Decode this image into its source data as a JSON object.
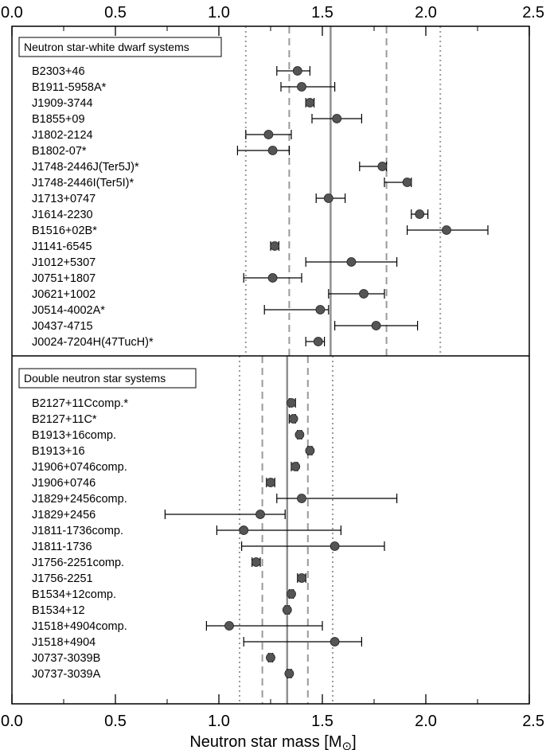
{
  "chart_data": {
    "type": "scatter",
    "xlabel_text": "Neutron star mass [M",
    "xlabel_symbol": "⊙",
    "xlabel_suffix": "]",
    "xlim": [
      0,
      2.5
    ],
    "xticks": [
      0.0,
      0.5,
      1.0,
      1.5,
      2.0,
      2.5
    ],
    "xtick_labels": [
      "0.0",
      "0.5",
      "1.0",
      "1.5",
      "2.0",
      "2.5"
    ],
    "colors": {
      "marker": "#555555",
      "mean": "#909090",
      "sigma": "#9a9a9a",
      "frame": "#000000"
    },
    "panels": [
      {
        "title": "Neutron star-white dwarf systems",
        "mean": 1.54,
        "sigma1": [
          1.34,
          1.81
        ],
        "sigma2": [
          1.13,
          2.07
        ],
        "points": [
          {
            "name": "B2303+46",
            "value": 1.38,
            "lo": 1.28,
            "hi": 1.44
          },
          {
            "name": "B1911-5958A*",
            "value": 1.4,
            "lo": 1.3,
            "hi": 1.56
          },
          {
            "name": "J1909-3744",
            "value": 1.44,
            "lo": 1.42,
            "hi": 1.46
          },
          {
            "name": "B1855+09",
            "value": 1.57,
            "lo": 1.45,
            "hi": 1.69
          },
          {
            "name": "J1802-2124",
            "value": 1.24,
            "lo": 1.13,
            "hi": 1.35
          },
          {
            "name": "B1802-07*",
            "value": 1.26,
            "lo": 1.09,
            "hi": 1.34
          },
          {
            "name": "J1748-2446J(Ter5J)*",
            "value": 1.79,
            "lo": 1.68,
            "hi": 1.81
          },
          {
            "name": "J1748-2446I(Ter5I)*",
            "value": 1.91,
            "lo": 1.8,
            "hi": 1.93
          },
          {
            "name": "J1713+0747",
            "value": 1.53,
            "lo": 1.47,
            "hi": 1.61
          },
          {
            "name": "J1614-2230",
            "value": 1.97,
            "lo": 1.93,
            "hi": 2.01
          },
          {
            "name": "B1516+02B*",
            "value": 2.1,
            "lo": 1.91,
            "hi": 2.3
          },
          {
            "name": "J1141-6545",
            "value": 1.27,
            "lo": 1.25,
            "hi": 1.29
          },
          {
            "name": "J1012+5307",
            "value": 1.64,
            "lo": 1.42,
            "hi": 1.86
          },
          {
            "name": "J0751+1807",
            "value": 1.26,
            "lo": 1.12,
            "hi": 1.4
          },
          {
            "name": "J0621+1002",
            "value": 1.7,
            "lo": 1.53,
            "hi": 1.8
          },
          {
            "name": "J0514-4002A*",
            "value": 1.49,
            "lo": 1.22,
            "hi": 1.53
          },
          {
            "name": "J0437-4715",
            "value": 1.76,
            "lo": 1.56,
            "hi": 1.96
          },
          {
            "name": "J0024-7204H(47TucH)*",
            "value": 1.48,
            "lo": 1.42,
            "hi": 1.51
          }
        ]
      },
      {
        "title": "Double neutron star systems",
        "mean": 1.33,
        "sigma1": [
          1.21,
          1.43
        ],
        "sigma2": [
          1.1,
          1.55
        ],
        "points": [
          {
            "name": "B2127+11Ccomp.*",
            "value": 1.35,
            "lo": 1.34,
            "hi": 1.37
          },
          {
            "name": "B2127+11C*",
            "value": 1.36,
            "lo": 1.34,
            "hi": 1.37
          },
          {
            "name": "B1913+16comp.",
            "value": 1.39,
            "lo": 1.38,
            "hi": 1.4
          },
          {
            "name": "B1913+16",
            "value": 1.44,
            "lo": 1.43,
            "hi": 1.45
          },
          {
            "name": "J1906+0746comp.",
            "value": 1.37,
            "lo": 1.35,
            "hi": 1.38
          },
          {
            "name": "J1906+0746",
            "value": 1.25,
            "lo": 1.23,
            "hi": 1.27
          },
          {
            "name": "J1829+2456comp.",
            "value": 1.4,
            "lo": 1.28,
            "hi": 1.86
          },
          {
            "name": "J1829+2456",
            "value": 1.2,
            "lo": 0.74,
            "hi": 1.32
          },
          {
            "name": "J1811-1736comp.",
            "value": 1.12,
            "lo": 0.99,
            "hi": 1.59
          },
          {
            "name": "J1811-1736",
            "value": 1.56,
            "lo": 1.11,
            "hi": 1.8
          },
          {
            "name": "J1756-2251comp.",
            "value": 1.18,
            "lo": 1.16,
            "hi": 1.2
          },
          {
            "name": "J1756-2251",
            "value": 1.4,
            "lo": 1.38,
            "hi": 1.42
          },
          {
            "name": "B1534+12comp.",
            "value": 1.35,
            "lo": 1.34,
            "hi": 1.36
          },
          {
            "name": "B1534+12",
            "value": 1.33,
            "lo": 1.32,
            "hi": 1.34
          },
          {
            "name": "J1518+4904comp.",
            "value": 1.05,
            "lo": 0.94,
            "hi": 1.5
          },
          {
            "name": "J1518+4904",
            "value": 1.56,
            "lo": 1.12,
            "hi": 1.69
          },
          {
            "name": "J0737-3039B",
            "value": 1.25,
            "lo": 1.24,
            "hi": 1.26
          },
          {
            "name": "J0737-3039A",
            "value": 1.34,
            "lo": 1.33,
            "hi": 1.35
          }
        ]
      }
    ]
  }
}
